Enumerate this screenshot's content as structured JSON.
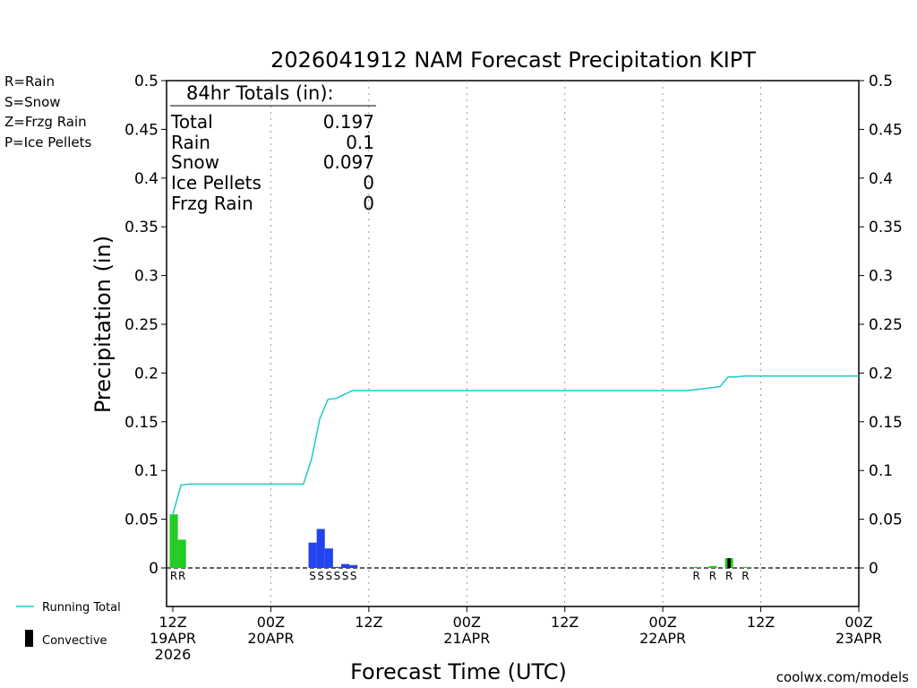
{
  "chart_data": {
    "type": "bar",
    "title": "2026041912 NAM Forecast Precipitation KIPT",
    "xlabel": "Forecast Time (UTC)",
    "ylabel": "Precipitation (in)",
    "ylim": [
      0,
      0.5
    ],
    "xlim_hours": [
      0,
      84
    ],
    "y_ticks": [
      "0",
      "0.05",
      "0.1",
      "0.15",
      "0.2",
      "0.25",
      "0.3",
      "0.35",
      "0.4",
      "0.45",
      "0.5"
    ],
    "x_ticks": [
      {
        "hour": 0,
        "line1": "12Z",
        "line2": "19APR",
        "line3": "2026"
      },
      {
        "hour": 12,
        "line1": "00Z",
        "line2": "20APR",
        "line3": ""
      },
      {
        "hour": 24,
        "line1": "12Z",
        "line2": "",
        "line3": ""
      },
      {
        "hour": 36,
        "line1": "00Z",
        "line2": "21APR",
        "line3": ""
      },
      {
        "hour": 48,
        "line1": "12Z",
        "line2": "",
        "line3": ""
      },
      {
        "hour": 60,
        "line1": "00Z",
        "line2": "22APR",
        "line3": ""
      },
      {
        "hour": 72,
        "line1": "12Z",
        "line2": "",
        "line3": ""
      },
      {
        "hour": 84,
        "line1": "00Z",
        "line2": "23APR",
        "line3": ""
      }
    ],
    "legend_types": [
      {
        "label": "R=Rain",
        "color": "#22cc22"
      },
      {
        "label": "S=Snow",
        "color": "#2244ee"
      },
      {
        "label": "Z=Frzg Rain",
        "color": "#f08030"
      },
      {
        "label": "P=Ice Pellets",
        "color": "#e0208a"
      }
    ],
    "legend_series": {
      "running_total": {
        "label": "Running Total",
        "color": "#20c8c8"
      },
      "convective": {
        "label": "Convective",
        "color": "#000000"
      }
    },
    "totals_box": {
      "header": "84hr Totals (in):",
      "rows": [
        {
          "label": "Total",
          "value": "0.197"
        },
        {
          "label": "Rain",
          "value": "0.1"
        },
        {
          "label": "Snow",
          "value": "0.097"
        },
        {
          "label": "Ice Pellets",
          "value": "0"
        },
        {
          "label": "Frzg Rain",
          "value": "0"
        }
      ]
    },
    "bars": [
      {
        "hour": 0,
        "value": 0.055,
        "type": "R",
        "color": "#22cc22"
      },
      {
        "hour": 1,
        "value": 0.029,
        "type": "R",
        "color": "#22cc22"
      },
      {
        "hour": 17,
        "value": 0.026,
        "type": "S",
        "color": "#2244ee"
      },
      {
        "hour": 18,
        "value": 0.04,
        "type": "S",
        "color": "#2244ee"
      },
      {
        "hour": 19,
        "value": 0.02,
        "type": "S",
        "color": "#2244ee"
      },
      {
        "hour": 20,
        "value": 0.001,
        "type": "S",
        "color": "#2244ee"
      },
      {
        "hour": 21,
        "value": 0.004,
        "type": "S",
        "color": "#2244ee"
      },
      {
        "hour": 22,
        "value": 0.003,
        "type": "S",
        "color": "#2244ee"
      },
      {
        "hour": 64,
        "value": 0.001,
        "type": "R",
        "color": "#22cc22"
      },
      {
        "hour": 66,
        "value": 0.002,
        "type": "R",
        "color": "#22cc22"
      },
      {
        "hour": 68,
        "value": 0.01,
        "type": "R",
        "color": "#22cc22",
        "convective": 0.01
      },
      {
        "hour": 70,
        "value": 0.001,
        "type": "R",
        "color": "#22cc22"
      }
    ],
    "running_total": {
      "hours": [
        0,
        1,
        2,
        3,
        6,
        12,
        16,
        17,
        18,
        19,
        20,
        21,
        22,
        23,
        24,
        63,
        64,
        65,
        66,
        67,
        68,
        69,
        70,
        84
      ],
      "values": [
        0.055,
        0.085,
        0.086,
        0.086,
        0.086,
        0.086,
        0.086,
        0.112,
        0.153,
        0.173,
        0.174,
        0.178,
        0.182,
        0.182,
        0.182,
        0.182,
        0.183,
        0.184,
        0.185,
        0.186,
        0.196,
        0.196,
        0.197,
        0.197
      ]
    }
  },
  "footer": {
    "credit": "coolwx.com/models"
  }
}
